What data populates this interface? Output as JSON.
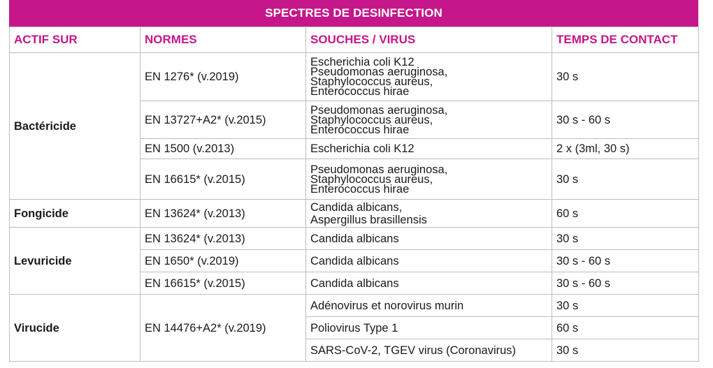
{
  "title": "SPECTRES DE DESINFECTION",
  "headers": {
    "actif_sur": "ACTIF SUR",
    "normes": "NORMES",
    "souches": "SOUCHES / VIRUS",
    "temps": "TEMPS DE CONTACT"
  },
  "colors": {
    "accent": "#c5168a",
    "border": "#bdbdbd"
  },
  "groups": {
    "bactericide": {
      "label": "Bactéricide",
      "rows": [
        {
          "norme": "EN 1276* (v.2019)",
          "souches": [
            "Escherichia coli K12",
            "Pseudomonas aeruginosa,",
            "Staphylococcus aureus,",
            "Enterococcus hirae"
          ],
          "temps": "30 s"
        },
        {
          "norme": "EN 13727+A2* (v.2015)",
          "souches": [
            "Pseudomonas aeruginosa,",
            "Staphylococcus aureus,",
            "Enterococcus hirae"
          ],
          "temps": "30 s - 60 s"
        },
        {
          "norme": "EN 1500 (v.2013)",
          "souches": [
            "Escherichia coli K12"
          ],
          "temps": "2 x (3ml, 30 s)"
        },
        {
          "norme": "EN 16615* (v.2015)",
          "souches": [
            "Pseudomonas aeruginosa,",
            "Staphylococcus aureus,",
            "Enterococcus hirae"
          ],
          "temps": "30 s"
        }
      ]
    },
    "fongicide": {
      "label": "Fongicide",
      "rows": [
        {
          "norme": "EN 13624* (v.2013)",
          "souches": [
            "Candida albicans,",
            "Aspergillus brasillensis"
          ],
          "temps": "60 s"
        }
      ]
    },
    "levuricide": {
      "label": "Levuricide",
      "rows": [
        {
          "norme": "EN 13624* (v.2013)",
          "souches": [
            "Candida albicans"
          ],
          "temps": "30 s"
        },
        {
          "norme": "EN 1650* (v.2019)",
          "souches": [
            "Candida albicans"
          ],
          "temps": "30 s - 60 s"
        },
        {
          "norme": "EN 16615* (v.2015)",
          "souches": [
            "Candida albicans"
          ],
          "temps": "30 s - 60 s"
        }
      ]
    },
    "virucide": {
      "label": "Virucide",
      "norme": "EN 14476+A2* (v.2019)",
      "rows": [
        {
          "souches": [
            "Adénovirus et norovirus murin"
          ],
          "temps": "30 s"
        },
        {
          "souches": [
            "Poliovirus Type 1"
          ],
          "temps": "60 s"
        },
        {
          "souches": [
            "SARS-CoV-2, TGEV virus (Coronavirus)"
          ],
          "temps": "30 s"
        }
      ]
    }
  }
}
